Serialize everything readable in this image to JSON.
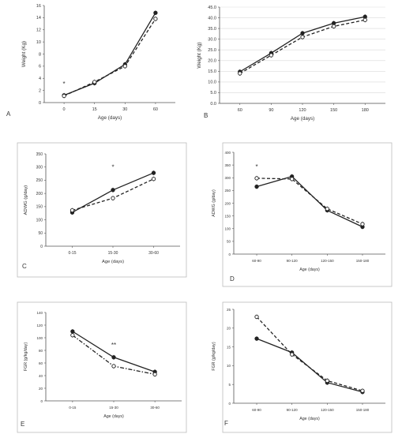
{
  "chart_data": [
    {
      "panel_letter": "A",
      "type": "line",
      "xlabel": "Age (days)",
      "ylabel": "Weight (Kg)",
      "ylim": [
        0,
        16
      ],
      "yticks": [
        0,
        2,
        4,
        6,
        8,
        10,
        12,
        14,
        16
      ],
      "categories": [
        "0",
        "15",
        "30",
        "60"
      ],
      "series": [
        {
          "values": [
            1.2,
            3.2,
            6.3,
            14.8
          ],
          "marker": "filled",
          "line": "solid"
        },
        {
          "values": [
            1.1,
            3.4,
            6.0,
            13.8
          ],
          "marker": "open",
          "line": "dashed"
        }
      ],
      "annotations": [
        {
          "text": "*",
          "category": "0",
          "value": 2.7
        }
      ],
      "grid": false
    },
    {
      "panel_letter": "B",
      "type": "line",
      "xlabel": "Age (days)",
      "ylabel": "Weight (Kg)",
      "ylim": [
        0,
        45
      ],
      "yticks": [
        "0.0",
        "5.0",
        "10.0",
        "15.0",
        "20.0",
        "25.0",
        "30.0",
        "35.0",
        "40.0",
        "45.0"
      ],
      "categories": [
        "60",
        "90",
        "120",
        "150",
        "180"
      ],
      "series": [
        {
          "values": [
            14.8,
            23.5,
            32.8,
            37.5,
            40.5
          ],
          "marker": "filled",
          "line": "solid"
        },
        {
          "values": [
            14.0,
            22.5,
            31.0,
            36.0,
            39.0
          ],
          "marker": "open",
          "line": "dashed"
        }
      ],
      "annotations": [],
      "grid": true
    },
    {
      "panel_letter": "C",
      "type": "line",
      "xlabel": "Age (days)",
      "ylabel": "ADWG (g/day)",
      "ylim": [
        0,
        350
      ],
      "yticks": [
        0,
        50,
        100,
        150,
        200,
        250,
        300,
        350
      ],
      "categories": [
        "0-15",
        "15-30",
        "30-60"
      ],
      "series": [
        {
          "values": [
            128,
            213,
            278
          ],
          "marker": "filled",
          "line": "solid"
        },
        {
          "values": [
            136,
            182,
            255
          ],
          "marker": "open",
          "line": "dashed"
        }
      ],
      "annotations": [
        {
          "text": "*",
          "category": "15-30",
          "value": 292
        }
      ],
      "grid": false
    },
    {
      "panel_letter": "D",
      "type": "line",
      "xlabel": "Age (days)",
      "ylabel": "ADWG (g/day)",
      "ylim": [
        0,
        400
      ],
      "yticks": [
        0,
        50,
        100,
        150,
        200,
        250,
        300,
        350,
        400
      ],
      "categories": [
        "60-90",
        "90-120",
        "120-150",
        "150-180"
      ],
      "series": [
        {
          "values": [
            265,
            305,
            172,
            107
          ],
          "marker": "filled",
          "line": "solid"
        },
        {
          "values": [
            298,
            295,
            178,
            118
          ],
          "marker": "open",
          "line": "dashed"
        }
      ],
      "annotations": [
        {
          "text": "*",
          "category": "60-90",
          "value": 335
        }
      ],
      "grid": false
    },
    {
      "panel_letter": "E",
      "type": "line",
      "xlabel": "Age (days)",
      "ylabel": "FGR (g/kg/day)",
      "ylim": [
        0,
        140
      ],
      "yticks": [
        0,
        20,
        40,
        60,
        80,
        100,
        120,
        140
      ],
      "categories": [
        "0-15",
        "15-30",
        "30-60"
      ],
      "series": [
        {
          "values": [
            110,
            69,
            46
          ],
          "marker": "filled",
          "line": "solid"
        },
        {
          "values": [
            104,
            55,
            42
          ],
          "marker": "open",
          "line": "dashdot"
        }
      ],
      "annotations": [
        {
          "text": "**",
          "category": "15-30",
          "value": 85
        }
      ],
      "grid": false
    },
    {
      "panel_letter": "F",
      "type": "line",
      "xlabel": "Age (days)",
      "ylabel": "FGR (g/kg/day)",
      "ylim": [
        0,
        25
      ],
      "yticks": [
        0,
        5,
        10,
        15,
        20,
        25
      ],
      "categories": [
        "60-90",
        "90-120",
        "120-150",
        "150-180"
      ],
      "series": [
        {
          "values": [
            17.2,
            13.5,
            5.5,
            3.0
          ],
          "marker": "filled",
          "line": "solid"
        },
        {
          "values": [
            23.0,
            13.0,
            6.0,
            3.3
          ],
          "marker": "open",
          "line": "dashed"
        }
      ],
      "annotations": [],
      "grid": false
    }
  ]
}
